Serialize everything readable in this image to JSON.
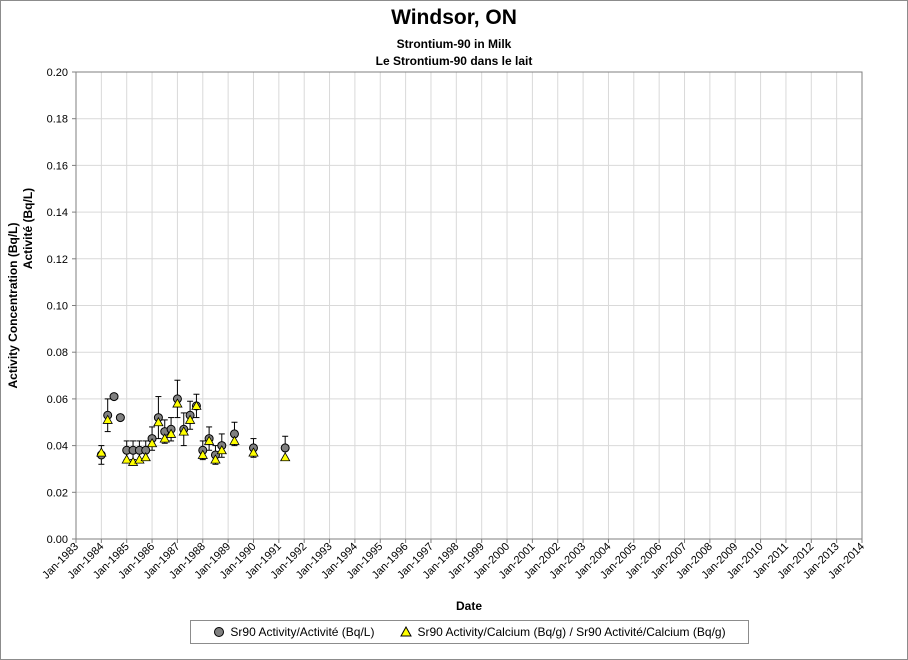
{
  "chart_data": {
    "type": "scatter",
    "title": "Windsor, ON",
    "subtitle_lines": [
      "Strontium-90 in Milk",
      "Le Strontium-90 dans le lait"
    ],
    "xlabel": "Date",
    "ylabel_lines": [
      "Activity Concentration (Bq/L)",
      "Activité (Bq/L)"
    ],
    "xlim": [
      "1983-01",
      "2014-01"
    ],
    "ylim": [
      0,
      0.2
    ],
    "y_ticks": [
      "0.00",
      "0.02",
      "0.04",
      "0.06",
      "0.08",
      "0.10",
      "0.12",
      "0.14",
      "0.16",
      "0.18",
      "0.20"
    ],
    "x_ticks": [
      "Jan-1983",
      "Jan-1984",
      "Jan-1985",
      "Jan-1986",
      "Jan-1987",
      "Jan-1988",
      "Jan-1989",
      "Jan-1990",
      "Jan-1991",
      "Jan-1992",
      "Jan-1993",
      "Jan-1994",
      "Jan-1995",
      "Jan-1996",
      "Jan-1997",
      "Jan-1998",
      "Jan-1999",
      "Jan-2000",
      "Jan-2001",
      "Jan-2002",
      "Jan-2003",
      "Jan-2004",
      "Jan-2005",
      "Jan-2006",
      "Jan-2007",
      "Jan-2008",
      "Jan-2009",
      "Jan-2010",
      "Jan-2011",
      "Jan-2012",
      "Jan-2013",
      "Jan-2014"
    ],
    "grid": true,
    "legend_position": "bottom",
    "series": [
      {
        "name": "Sr90 Activity/Activité (Bq/L)",
        "marker": "circle",
        "color": "#808080",
        "points": [
          {
            "x": "1984-01",
            "y": 0.036,
            "err": 0.004
          },
          {
            "x": "1984-04",
            "y": 0.053,
            "err": 0.007
          },
          {
            "x": "1984-07",
            "y": 0.061
          },
          {
            "x": "1984-10",
            "y": 0.052
          },
          {
            "x": "1985-01",
            "y": 0.038,
            "err": 0.004
          },
          {
            "x": "1985-04",
            "y": 0.038,
            "err": 0.004
          },
          {
            "x": "1985-07",
            "y": 0.038,
            "err": 0.004
          },
          {
            "x": "1985-10",
            "y": 0.038,
            "err": 0.004
          },
          {
            "x": "1986-01",
            "y": 0.043,
            "err": 0.005
          },
          {
            "x": "1986-04",
            "y": 0.052,
            "err": 0.009
          },
          {
            "x": "1986-07",
            "y": 0.046,
            "err": 0.005
          },
          {
            "x": "1986-10",
            "y": 0.047,
            "err": 0.005
          },
          {
            "x": "1987-01",
            "y": 0.06,
            "err": 0.008
          },
          {
            "x": "1987-04",
            "y": 0.047,
            "err": 0.007
          },
          {
            "x": "1987-07",
            "y": 0.053,
            "err": 0.006
          },
          {
            "x": "1987-10",
            "y": 0.057,
            "err": 0.005
          },
          {
            "x": "1988-01",
            "y": 0.038,
            "err": 0.004
          },
          {
            "x": "1988-04",
            "y": 0.043,
            "err": 0.005
          },
          {
            "x": "1988-07",
            "y": 0.036,
            "err": 0.004
          },
          {
            "x": "1988-10",
            "y": 0.04,
            "err": 0.005
          },
          {
            "x": "1989-04",
            "y": 0.045,
            "err": 0.005
          },
          {
            "x": "1990-01",
            "y": 0.039,
            "err": 0.004
          },
          {
            "x": "1991-04",
            "y": 0.039,
            "err": 0.005
          }
        ]
      },
      {
        "name": "Sr90 Activity/Calcium (Bq/g) / Sr90 Activité/Calcium (Bq/g)",
        "marker": "triangle",
        "color": "#ffff00",
        "points": [
          {
            "x": "1984-01",
            "y": 0.037
          },
          {
            "x": "1984-04",
            "y": 0.051
          },
          {
            "x": "1985-01",
            "y": 0.034
          },
          {
            "x": "1985-04",
            "y": 0.033
          },
          {
            "x": "1985-07",
            "y": 0.034
          },
          {
            "x": "1985-10",
            "y": 0.035
          },
          {
            "x": "1986-01",
            "y": 0.041
          },
          {
            "x": "1986-04",
            "y": 0.05
          },
          {
            "x": "1986-07",
            "y": 0.043
          },
          {
            "x": "1986-10",
            "y": 0.045
          },
          {
            "x": "1987-01",
            "y": 0.058
          },
          {
            "x": "1987-04",
            "y": 0.046
          },
          {
            "x": "1987-07",
            "y": 0.051
          },
          {
            "x": "1987-10",
            "y": 0.057
          },
          {
            "x": "1988-01",
            "y": 0.036
          },
          {
            "x": "1988-04",
            "y": 0.042
          },
          {
            "x": "1988-07",
            "y": 0.034
          },
          {
            "x": "1988-10",
            "y": 0.038
          },
          {
            "x": "1989-04",
            "y": 0.042
          },
          {
            "x": "1990-01",
            "y": 0.037
          },
          {
            "x": "1991-04",
            "y": 0.035
          }
        ]
      }
    ]
  }
}
